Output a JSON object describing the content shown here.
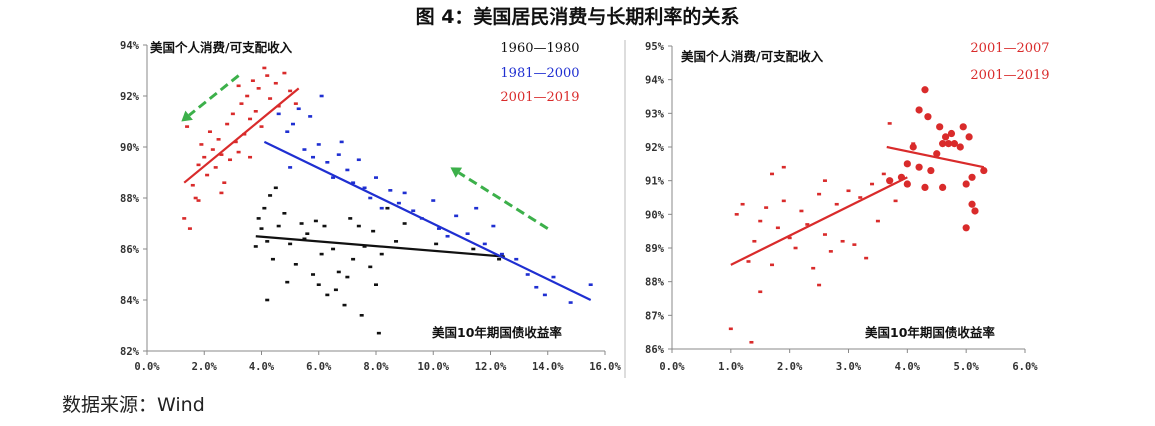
{
  "title": "图 4：美国居民消费与长期利率的关系",
  "source": "数据来源：Wind",
  "colors": {
    "black": "#111111",
    "blue": "#1f2fd1",
    "red": "#d92b2b",
    "green": "#3cb04a",
    "axis": "#888888"
  },
  "chart_data": [
    {
      "type": "scatter",
      "ylabel": "美国个人消费/可支配收入",
      "xlabel": "美国10年期国债收益率",
      "xlim": [
        0,
        16
      ],
      "ylim": [
        82,
        94
      ],
      "x_ticks": [
        "0.0%",
        "2.0%",
        "4.0%",
        "6.0%",
        "8.0%",
        "10.0%",
        "12.0%",
        "14.0%",
        "16.0%"
      ],
      "y_ticks": [
        "82%",
        "84%",
        "86%",
        "88%",
        "90%",
        "92%",
        "94%"
      ],
      "legend": [
        "1960—1980",
        "1981—2000",
        "2001—2019"
      ],
      "series": [
        {
          "name": "1960—1980",
          "color": "black",
          "points": [
            [
              3.9,
              87.2
            ],
            [
              4.0,
              86.8
            ],
            [
              4.2,
              86.3
            ],
            [
              4.1,
              87.6
            ],
            [
              4.3,
              88.1
            ],
            [
              3.8,
              86.1
            ],
            [
              4.4,
              85.6
            ],
            [
              4.6,
              86.9
            ],
            [
              4.8,
              87.4
            ],
            [
              5.0,
              86.2
            ],
            [
              5.2,
              85.4
            ],
            [
              5.4,
              87.0
            ],
            [
              5.6,
              86.6
            ],
            [
              5.8,
              85.0
            ],
            [
              6.0,
              84.6
            ],
            [
              6.1,
              85.8
            ],
            [
              6.3,
              84.2
            ],
            [
              6.5,
              86.0
            ],
            [
              6.7,
              85.1
            ],
            [
              6.9,
              83.8
            ],
            [
              7.0,
              84.9
            ],
            [
              7.2,
              85.6
            ],
            [
              7.4,
              86.9
            ],
            [
              7.6,
              86.1
            ],
            [
              7.8,
              85.3
            ],
            [
              8.0,
              84.6
            ],
            [
              8.2,
              85.8
            ],
            [
              7.5,
              83.4
            ],
            [
              6.6,
              84.4
            ],
            [
              8.1,
              82.7
            ],
            [
              5.5,
              86.4
            ],
            [
              4.5,
              88.4
            ],
            [
              5.9,
              87.1
            ],
            [
              6.2,
              86.9
            ],
            [
              7.1,
              87.2
            ],
            [
              7.9,
              86.7
            ],
            [
              8.4,
              87.6
            ],
            [
              8.7,
              86.3
            ],
            [
              9.0,
              87.0
            ],
            [
              10.1,
              86.2
            ],
            [
              11.4,
              86.0
            ],
            [
              12.3,
              85.6
            ],
            [
              4.2,
              84.0
            ],
            [
              4.9,
              84.7
            ]
          ]
        },
        {
          "name": "1981—2000",
          "color": "blue",
          "points": [
            [
              4.6,
              91.3
            ],
            [
              4.9,
              90.6
            ],
            [
              5.1,
              90.9
            ],
            [
              5.3,
              91.5
            ],
            [
              5.5,
              89.9
            ],
            [
              5.8,
              89.6
            ],
            [
              6.0,
              90.1
            ],
            [
              6.3,
              89.4
            ],
            [
              6.5,
              88.8
            ],
            [
              6.7,
              89.7
            ],
            [
              7.0,
              89.1
            ],
            [
              7.2,
              88.6
            ],
            [
              7.4,
              89.5
            ],
            [
              7.6,
              88.4
            ],
            [
              7.8,
              88.0
            ],
            [
              8.0,
              88.8
            ],
            [
              8.2,
              87.6
            ],
            [
              8.5,
              88.3
            ],
            [
              8.8,
              87.8
            ],
            [
              9.0,
              88.2
            ],
            [
              9.3,
              87.5
            ],
            [
              9.6,
              87.2
            ],
            [
              10.0,
              87.9
            ],
            [
              10.2,
              86.8
            ],
            [
              10.5,
              86.5
            ],
            [
              10.8,
              87.3
            ],
            [
              11.2,
              86.6
            ],
            [
              11.5,
              87.6
            ],
            [
              11.8,
              86.2
            ],
            [
              12.1,
              86.9
            ],
            [
              12.4,
              85.8
            ],
            [
              12.9,
              85.6
            ],
            [
              13.3,
              85.0
            ],
            [
              13.6,
              84.5
            ],
            [
              13.9,
              84.2
            ],
            [
              14.2,
              84.9
            ],
            [
              14.8,
              83.9
            ],
            [
              15.5,
              84.6
            ],
            [
              5.7,
              91.2
            ],
            [
              6.1,
              92.0
            ],
            [
              5.0,
              89.2
            ],
            [
              6.8,
              90.2
            ]
          ]
        },
        {
          "name": "2001—2019",
          "color": "red",
          "points": [
            [
              1.3,
              87.2
            ],
            [
              1.5,
              86.8
            ],
            [
              1.6,
              88.5
            ],
            [
              1.7,
              88.0
            ],
            [
              1.8,
              89.3
            ],
            [
              1.9,
              90.1
            ],
            [
              2.0,
              89.6
            ],
            [
              2.1,
              88.9
            ],
            [
              2.2,
              90.6
            ],
            [
              2.3,
              89.9
            ],
            [
              2.4,
              89.2
            ],
            [
              2.5,
              90.3
            ],
            [
              2.6,
              89.7
            ],
            [
              2.7,
              88.6
            ],
            [
              2.8,
              90.9
            ],
            [
              2.9,
              89.5
            ],
            [
              3.0,
              91.3
            ],
            [
              3.1,
              90.2
            ],
            [
              3.2,
              89.8
            ],
            [
              3.3,
              91.7
            ],
            [
              3.4,
              90.5
            ],
            [
              3.5,
              92.0
            ],
            [
              3.6,
              91.1
            ],
            [
              3.7,
              92.6
            ],
            [
              3.8,
              91.4
            ],
            [
              3.9,
              92.3
            ],
            [
              4.0,
              90.8
            ],
            [
              4.1,
              93.1
            ],
            [
              4.2,
              92.8
            ],
            [
              4.3,
              91.9
            ],
            [
              4.5,
              92.5
            ],
            [
              4.6,
              91.6
            ],
            [
              4.8,
              92.9
            ],
            [
              5.0,
              92.2
            ],
            [
              5.2,
              91.7
            ],
            [
              1.4,
              90.8
            ],
            [
              1.8,
              87.9
            ],
            [
              2.6,
              88.2
            ],
            [
              3.2,
              92.4
            ],
            [
              3.6,
              89.6
            ]
          ]
        }
      ],
      "trendlines": [
        {
          "series": "1960—1980",
          "from": [
            3.8,
            86.5
          ],
          "to": [
            12.5,
            85.7
          ]
        },
        {
          "series": "1981—2000",
          "from": [
            4.1,
            90.2
          ],
          "to": [
            15.5,
            84.0
          ]
        },
        {
          "series": "2001—2019",
          "from": [
            1.3,
            88.6
          ],
          "to": [
            5.3,
            92.3
          ]
        }
      ],
      "arrows": [
        {
          "color": "green",
          "from": [
            3.2,
            92.8
          ],
          "to": [
            1.2,
            91.0
          ]
        },
        {
          "color": "green",
          "from": [
            14.0,
            86.8
          ],
          "to": [
            10.6,
            89.2
          ]
        }
      ]
    },
    {
      "type": "scatter",
      "ylabel": "美国个人消费/可支配收入",
      "xlabel": "美国10年期国债收益率",
      "xlim": [
        0,
        6
      ],
      "ylim": [
        86,
        95
      ],
      "x_ticks": [
        "0.0%",
        "1.0%",
        "2.0%",
        "3.0%",
        "4.0%",
        "5.0%",
        "6.0%"
      ],
      "y_ticks": [
        "86%",
        "87%",
        "88%",
        "89%",
        "90%",
        "91%",
        "92%",
        "93%",
        "94%",
        "95%"
      ],
      "legend": [
        "2001—2007",
        "2001—2019"
      ],
      "series": [
        {
          "name": "2001—2019",
          "color": "red",
          "marker": "square",
          "points": [
            [
              1.0,
              86.6
            ],
            [
              1.2,
              90.3
            ],
            [
              1.3,
              88.6
            ],
            [
              1.4,
              89.2
            ],
            [
              1.5,
              89.8
            ],
            [
              1.6,
              90.2
            ],
            [
              1.7,
              88.5
            ],
            [
              1.7,
              91.2
            ],
            [
              1.8,
              89.6
            ],
            [
              1.9,
              90.4
            ],
            [
              2.0,
              89.3
            ],
            [
              2.1,
              89.0
            ],
            [
              2.2,
              90.1
            ],
            [
              2.3,
              89.7
            ],
            [
              2.4,
              88.4
            ],
            [
              2.5,
              90.6
            ],
            [
              2.6,
              89.4
            ],
            [
              2.6,
              91.0
            ],
            [
              2.7,
              88.9
            ],
            [
              2.8,
              90.3
            ],
            [
              2.9,
              89.2
            ],
            [
              3.0,
              90.7
            ],
            [
              3.1,
              89.1
            ],
            [
              3.2,
              90.5
            ],
            [
              3.3,
              88.7
            ],
            [
              3.4,
              90.9
            ],
            [
              3.5,
              89.8
            ],
            [
              3.6,
              91.2
            ],
            [
              3.7,
              92.7
            ],
            [
              3.8,
              90.4
            ],
            [
              1.5,
              87.7
            ],
            [
              1.1,
              90.0
            ],
            [
              1.35,
              86.2
            ],
            [
              2.5,
              87.9
            ],
            [
              4.1,
              92.1
            ],
            [
              1.9,
              91.4
            ]
          ]
        },
        {
          "name": "2001—2007",
          "color": "red",
          "marker": "circle",
          "points": [
            [
              3.7,
              91.0
            ],
            [
              3.9,
              91.1
            ],
            [
              4.0,
              90.9
            ],
            [
              4.0,
              91.5
            ],
            [
              4.1,
              92.0
            ],
            [
              4.2,
              93.1
            ],
            [
              4.2,
              91.4
            ],
            [
              4.3,
              93.7
            ],
            [
              4.3,
              90.8
            ],
            [
              4.35,
              92.9
            ],
            [
              4.4,
              91.3
            ],
            [
              4.5,
              91.8
            ],
            [
              4.55,
              92.6
            ],
            [
              4.6,
              92.1
            ],
            [
              4.6,
              90.8
            ],
            [
              4.65,
              92.3
            ],
            [
              4.7,
              92.1
            ],
            [
              4.75,
              92.4
            ],
            [
              4.8,
              92.1
            ],
            [
              4.9,
              92.0
            ],
            [
              4.95,
              92.6
            ],
            [
              5.0,
              90.9
            ],
            [
              5.05,
              92.3
            ],
            [
              5.1,
              91.1
            ],
            [
              5.1,
              90.3
            ],
            [
              5.15,
              90.1
            ],
            [
              5.0,
              89.6
            ],
            [
              5.3,
              91.3
            ]
          ]
        }
      ],
      "trendlines": [
        {
          "series": "2001—2019",
          "from": [
            1.0,
            88.5
          ],
          "to": [
            4.0,
            91.1
          ]
        },
        {
          "series": "2001—2007",
          "from": [
            3.65,
            92.0
          ],
          "to": [
            5.3,
            91.4
          ]
        }
      ]
    }
  ]
}
